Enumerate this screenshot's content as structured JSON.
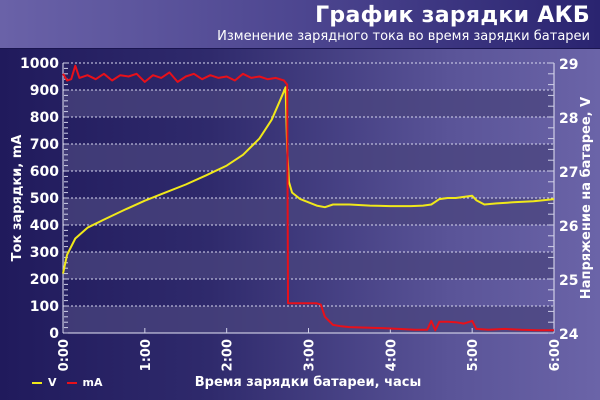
{
  "header": {
    "title": "График зарядки АКБ",
    "subtitle": "Изменение зарядного тока во время зарядки батареи"
  },
  "axes": {
    "y_left_title": "Ток зарядки, mA",
    "y_right_title": "Напряжение на батарее, V",
    "x_title": "Время зарядки батареи, часы",
    "y_left_ticks": [
      "0",
      "100",
      "200",
      "300",
      "400",
      "500",
      "600",
      "700",
      "800",
      "900",
      "1000"
    ],
    "y_right_ticks": [
      "24",
      "25",
      "26",
      "27",
      "28",
      "29"
    ],
    "x_ticks": [
      "0:00",
      "1:00",
      "2:00",
      "3:00",
      "4:00",
      "5:00",
      "6:00"
    ]
  },
  "legend": [
    {
      "label": "V",
      "color": "#f0e81a"
    },
    {
      "label": "mA",
      "color": "#e8101a"
    }
  ],
  "colors": {
    "voltage_line": "#f0e81a",
    "current_line": "#e8101a",
    "band_light": "#4a447e",
    "grid": "#d8d8f0"
  },
  "chart_data": {
    "type": "line",
    "title": "График зарядки АКБ",
    "subtitle": "Изменение зарядного тока во время зарядки батареи",
    "xlabel": "Время зарядки батареи, часы",
    "ylabel": "Ток зарядки, mA",
    "y2label": "Напряжение на батарее, V",
    "xlim": [
      0,
      6
    ],
    "ylim": [
      0,
      1000
    ],
    "y2lim": [
      24,
      29
    ],
    "x_tick_labels": [
      "0:00",
      "1:00",
      "2:00",
      "3:00",
      "4:00",
      "5:00",
      "6:00"
    ],
    "grid": true,
    "legend_position": "bottom-left",
    "series": [
      {
        "name": "V",
        "axis": "right",
        "color": "#f0e81a",
        "x": [
          0,
          0.05,
          0.15,
          0.3,
          0.5,
          0.75,
          1.0,
          1.25,
          1.5,
          1.75,
          2.0,
          2.2,
          2.4,
          2.55,
          2.65,
          2.72,
          2.74,
          2.76,
          2.8,
          2.9,
          3.0,
          3.1,
          3.2,
          3.3,
          3.5,
          3.75,
          4.0,
          4.25,
          4.4,
          4.5,
          4.6,
          4.7,
          4.8,
          4.9,
          5.0,
          5.05,
          5.15,
          5.3,
          5.5,
          5.75,
          6.0
        ],
        "values": [
          25.1,
          25.45,
          25.75,
          25.95,
          26.1,
          26.28,
          26.45,
          26.6,
          26.75,
          26.92,
          27.1,
          27.3,
          27.6,
          27.95,
          28.3,
          28.55,
          27.4,
          26.8,
          26.6,
          26.48,
          26.42,
          26.36,
          26.33,
          26.38,
          26.38,
          26.36,
          26.35,
          26.35,
          26.36,
          26.38,
          26.48,
          26.5,
          26.5,
          26.52,
          26.54,
          26.46,
          26.38,
          26.4,
          26.42,
          26.44,
          26.48
        ]
      },
      {
        "name": "mA",
        "axis": "left",
        "color": "#e8101a",
        "x": [
          0,
          0.05,
          0.1,
          0.15,
          0.2,
          0.3,
          0.4,
          0.5,
          0.6,
          0.7,
          0.8,
          0.9,
          1.0,
          1.1,
          1.2,
          1.3,
          1.4,
          1.5,
          1.6,
          1.7,
          1.8,
          1.9,
          2.0,
          2.1,
          2.2,
          2.3,
          2.4,
          2.5,
          2.6,
          2.7,
          2.74,
          2.75,
          2.9,
          3.0,
          3.1,
          3.15,
          3.2,
          3.3,
          3.4,
          3.5,
          3.7,
          3.9,
          4.1,
          4.3,
          4.45,
          4.5,
          4.55,
          4.6,
          4.7,
          4.8,
          4.9,
          5.0,
          5.05,
          5.2,
          5.4,
          5.6,
          5.8,
          6.0
        ],
        "values": [
          960,
          935,
          940,
          990,
          945,
          955,
          940,
          960,
          935,
          955,
          950,
          960,
          930,
          955,
          945,
          965,
          930,
          950,
          960,
          940,
          955,
          945,
          950,
          935,
          960,
          945,
          950,
          940,
          945,
          935,
          920,
          110,
          110,
          110,
          110,
          105,
          60,
          30,
          25,
          22,
          20,
          18,
          15,
          12,
          12,
          45,
          10,
          42,
          42,
          40,
          35,
          45,
          15,
          12,
          15,
          12,
          10,
          10
        ]
      }
    ]
  }
}
